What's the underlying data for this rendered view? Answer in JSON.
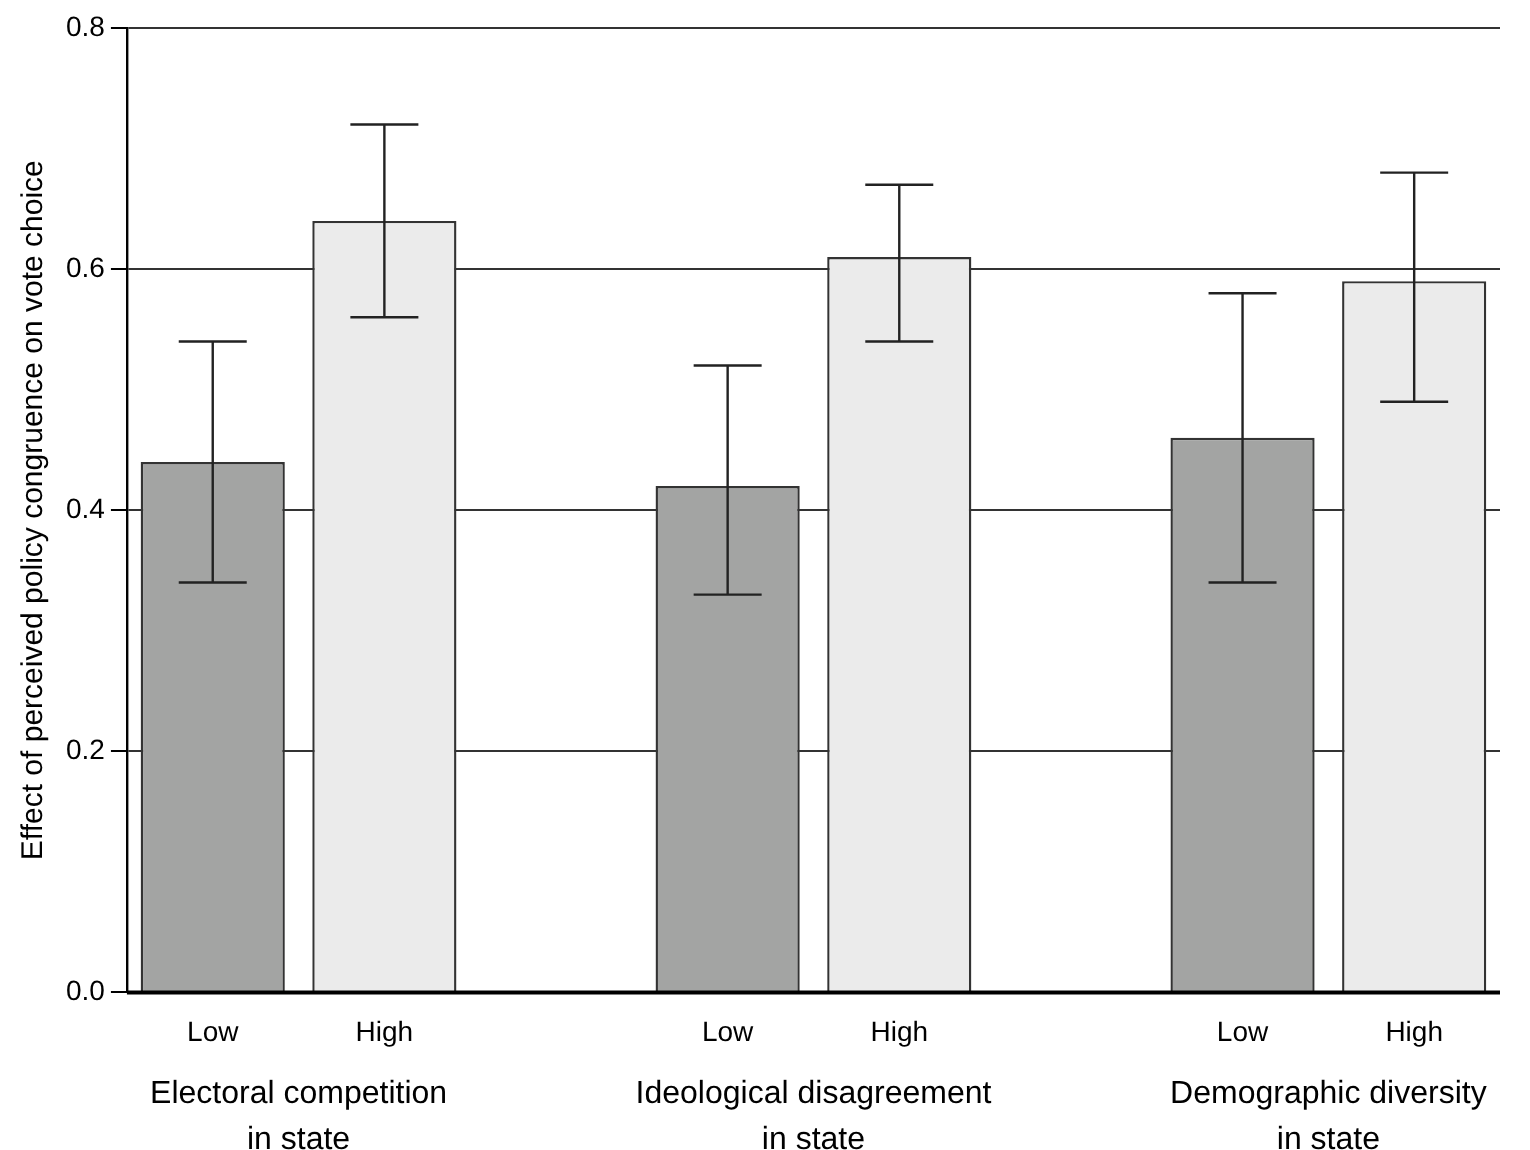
{
  "chart_data": {
    "type": "bar",
    "ylabel": "Effect of perceived policy congruence on vote choice",
    "categories": [
      "Low",
      "High",
      null,
      "Low",
      "High",
      null,
      "Low",
      "High"
    ],
    "values": [
      0.44,
      0.64,
      null,
      0.42,
      0.61,
      null,
      0.46,
      0.59
    ],
    "colors": [
      "#a3a4a3",
      "#ebebeb",
      null,
      "#a3a4a3",
      "#ebebeb",
      null,
      "#a3a4a3",
      "#ebebeb"
    ],
    "errors": [
      [
        0.34,
        0.54
      ],
      [
        0.56,
        0.72
      ],
      null,
      [
        0.33,
        0.52
      ],
      [
        0.54,
        0.67
      ],
      null,
      [
        0.34,
        0.58
      ],
      [
        0.49,
        0.68
      ]
    ],
    "ylim": [
      0,
      0.8
    ],
    "yticks": [
      {
        "value": 0,
        "label": "0.0"
      },
      {
        "value": 0.2,
        "label": "0.2"
      },
      {
        "value": 0.4,
        "label": "0.4"
      },
      {
        "value": 0.6,
        "label": "0.6"
      },
      {
        "value": 0.8,
        "label": "0.8"
      }
    ],
    "grid": "y",
    "legend": false,
    "annotations": [
      "Electoral competition\nin state",
      "Ideological disagreement\nin state",
      "Demographic diversity\nin state"
    ]
  }
}
